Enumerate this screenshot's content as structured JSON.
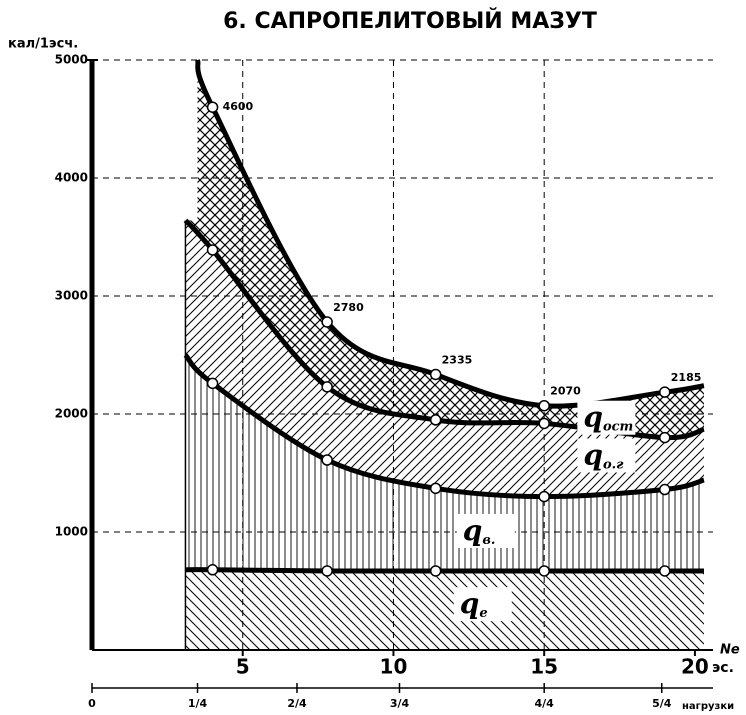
{
  "chart_data": {
    "type": "line",
    "title": "6. САПРОПЕЛИТОВЫЙ МАЗУТ",
    "y_label": "кал/1эсч.",
    "x_label": "Ne",
    "x_label_sub": "эс.",
    "x2_label": "нагрузки",
    "xlim": [
      0,
      20.6
    ],
    "ylim": [
      0,
      5000
    ],
    "xticks": [
      5,
      10,
      15,
      20
    ],
    "yticks": [
      {
        "value": 1000,
        "label": "1000"
      },
      {
        "value": 2000,
        "label": "2000"
      },
      {
        "value": 3000,
        "label": "3000"
      },
      {
        "value": 4000,
        "label": "4000"
      },
      {
        "value": 5000,
        "label": "5000"
      }
    ],
    "x2ticks": [
      {
        "value": 0,
        "label": "0"
      },
      {
        "value": 3.5,
        "label": "1/4"
      },
      {
        "value": 6.8,
        "label": "2/4"
      },
      {
        "value": 10.2,
        "label": "3/4"
      },
      {
        "value": 15,
        "label": "4/4"
      },
      {
        "value": 18.9,
        "label": "5/4"
      }
    ],
    "grid": true,
    "series": [
      {
        "name": "q",
        "subscript": "ост",
        "color": "#000000",
        "x": [
          3.5,
          4,
          7.8,
          11.4,
          15,
          19,
          20.3
        ],
        "values": [
          5000,
          4600,
          2780,
          2335,
          2070,
          2185,
          2240
        ],
        "value_labels": [
          null,
          "4600",
          "2780",
          "2335",
          "2070",
          "2185",
          null
        ]
      },
      {
        "name": "q",
        "subscript": "о.г",
        "color": "#000000",
        "x": [
          3.1,
          4,
          7.8,
          11.4,
          15,
          19,
          20.3
        ],
        "values": [
          3640,
          3390,
          2230,
          1950,
          1920,
          1800,
          1870
        ]
      },
      {
        "name": "q",
        "subscript": "в.",
        "color": "#000000",
        "x": [
          3.1,
          4,
          7.8,
          11.4,
          15,
          19,
          20.3
        ],
        "values": [
          2500,
          2260,
          1610,
          1370,
          1300,
          1360,
          1440
        ]
      },
      {
        "name": "q",
        "subscript": "e",
        "color": "#000000",
        "x": [
          3.1,
          4,
          7.8,
          11.4,
          15,
          19,
          20.3
        ],
        "values": [
          680,
          680,
          670,
          670,
          670,
          670,
          670
        ]
      }
    ]
  }
}
